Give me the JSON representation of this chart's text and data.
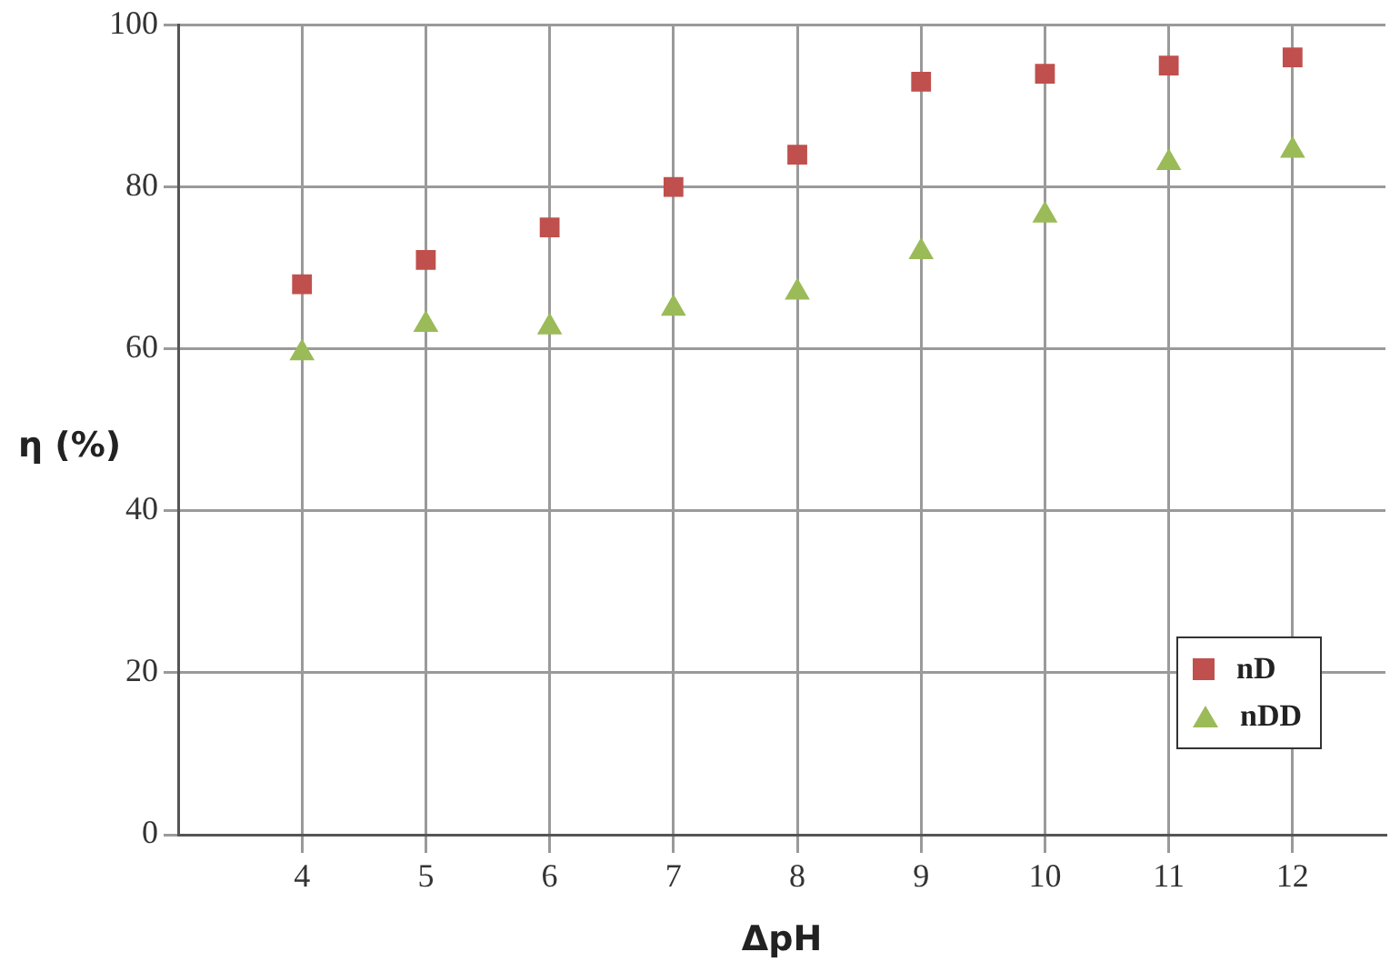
{
  "chart_data": {
    "type": "scatter",
    "xlabel": "ΔpH",
    "ylabel": "η (%)",
    "xlim": [
      3,
      12.75
    ],
    "xticks": [
      4,
      5,
      6,
      7,
      8,
      9,
      10,
      11,
      12
    ],
    "ylim": [
      0,
      100
    ],
    "yticks": [
      0,
      20,
      40,
      60,
      80,
      100
    ],
    "grid": true,
    "legend": "bottom right",
    "series": [
      {
        "name": "nD",
        "color": "#c0504d",
        "marker": "square",
        "x": [
          4,
          5,
          6,
          7,
          8,
          9,
          10,
          11,
          12
        ],
        "values": [
          68,
          71,
          75,
          80,
          84,
          93,
          94,
          95,
          96
        ]
      },
      {
        "name": "nDD",
        "color": "#9bbb59",
        "marker": "triangle",
        "x": [
          4,
          5,
          6,
          7,
          8,
          9,
          10,
          11,
          12
        ],
        "values": [
          59.5,
          63,
          62.7,
          65,
          67,
          72,
          76.5,
          83,
          84.5
        ]
      }
    ]
  }
}
